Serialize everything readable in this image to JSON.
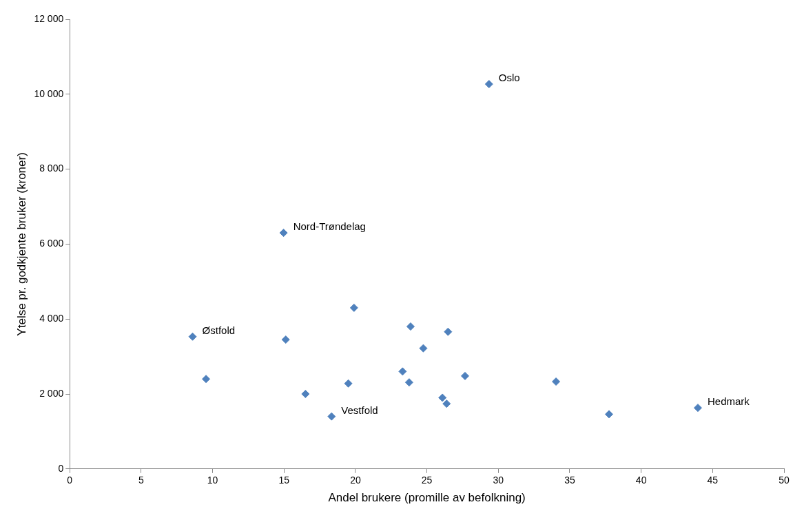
{
  "chart_data": {
    "type": "scatter",
    "xlabel": "Andel brukere (promille av befolkning)",
    "ylabel": "Ytelse pr. godkjente bruker (kroner)",
    "series": [
      {
        "color": "#4f81bd",
        "x": [
          29.35,
          14.97,
          8.6,
          9.54,
          15.12,
          19.9,
          16.5,
          18.33,
          19.5,
          23.3,
          23.86,
          23.76,
          24.75,
          26.48,
          26.09,
          26.38,
          27.67,
          34.04,
          37.75,
          43.97
        ],
        "values": [
          10270,
          6300,
          3530,
          2400,
          3450,
          4300,
          2000,
          1400,
          2280,
          2600,
          3800,
          2310,
          3220,
          3660,
          1900,
          1740,
          2480,
          2330,
          1460,
          1630
        ]
      }
    ],
    "annotations": [
      {
        "text": "Oslo",
        "x": 29.35,
        "y": 10270
      },
      {
        "text": "Nord-Trøndelag",
        "x": 14.97,
        "y": 6300
      },
      {
        "text": "Østfold",
        "x": 8.6,
        "y": 3530
      },
      {
        "text": "Vestfold",
        "x": 18.33,
        "y": 1400
      },
      {
        "text": "Hedmark",
        "x": 43.97,
        "y": 1630
      }
    ],
    "xlim": [
      0,
      50
    ],
    "xticks": [
      0,
      5,
      10,
      15,
      20,
      25,
      30,
      35,
      40,
      45,
      50
    ],
    "ylim": [
      0,
      12000
    ],
    "yticks": [
      0,
      {
        "value": 2000,
        "label": "2 000"
      },
      {
        "value": 4000,
        "label": "4 000"
      },
      {
        "value": 6000,
        "label": "6 000"
      },
      {
        "value": 8000,
        "label": "8 000"
      },
      {
        "value": 10000,
        "label": "10 000"
      },
      {
        "value": 12000,
        "label": "12 000"
      }
    ],
    "grid": false,
    "legend": false,
    "marker": "diamond"
  }
}
